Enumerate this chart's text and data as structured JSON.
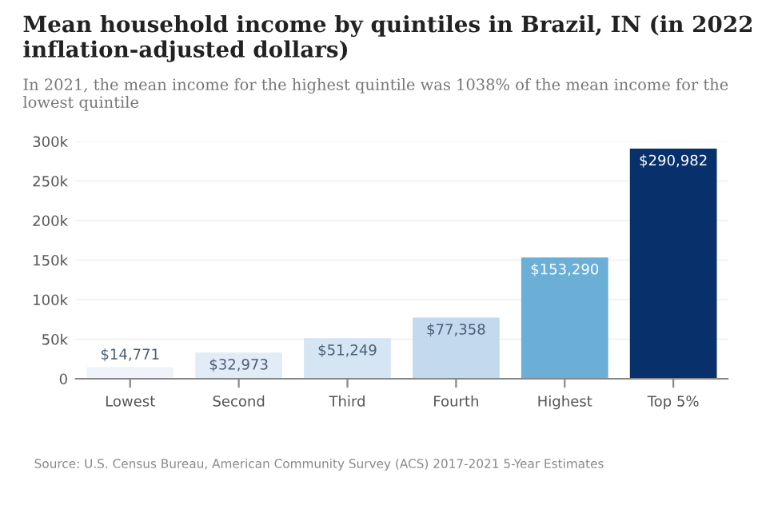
{
  "chart_data": {
    "type": "bar",
    "title": "Mean household income by quintiles in Brazil, IN (in 2022 inflation-adjusted dollars)",
    "subtitle": "In 2021, the mean income for the highest quintile was 1038% of the mean income for the lowest quintile",
    "categories": [
      "Lowest",
      "Second",
      "Third",
      "Fourth",
      "Highest",
      "Top 5%"
    ],
    "values": [
      14771,
      32973,
      51249,
      77358,
      153290,
      290982
    ],
    "colors": [
      "#f0f4fa",
      "#e2ecf7",
      "#d5e5f4",
      "#c3d9ee",
      "#6baed6",
      "#08306b"
    ],
    "value_labels": [
      "$14,771",
      "$32,973",
      "$51,249",
      "$77,358",
      "$153,290",
      "$290,982"
    ],
    "ylim": [
      0,
      300000
    ],
    "yticks": [
      0,
      {
        "value": 50000,
        "label": "50k"
      },
      {
        "value": 100000,
        "label": "100k"
      },
      {
        "value": 150000,
        "label": "150k"
      },
      {
        "value": 200000,
        "label": "200k"
      },
      {
        "value": 250000,
        "label": "250k"
      },
      {
        "value": 300000,
        "label": "300k"
      }
    ],
    "grid": "y",
    "annotations": [
      "Source: U.S. Census Bureau, American Community Survey (ACS) 2017-2021 5-Year Estimates"
    ]
  }
}
